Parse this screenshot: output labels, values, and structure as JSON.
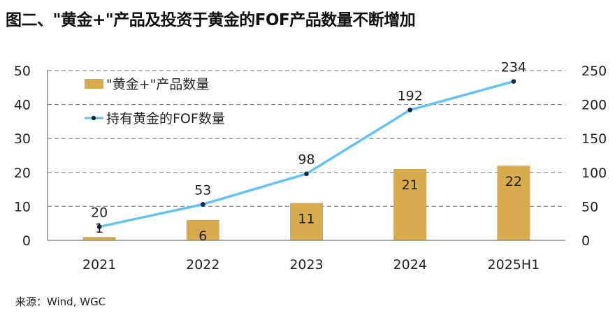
{
  "title": "图二、\"黄金+\"产品及投资于黄金的FOF产品数量不断增加",
  "source": "来源：Wind, WGC",
  "colors": {
    "bar": "#D8AC4E",
    "line": "#62C3F2",
    "marker": "#0B2A4A",
    "grid": "#888888",
    "axis": "#888888"
  },
  "chart_data": {
    "type": "bar+line",
    "title": "图二、\"黄金+\"产品及投资于黄金的FOF产品数量不断增加",
    "categories": [
      "2021",
      "2022",
      "2023",
      "2024",
      "2025H1"
    ],
    "series": [
      {
        "name": "\"黄金+\"产品数量",
        "type": "bar",
        "axis": "left",
        "values": [
          1,
          6,
          11,
          21,
          22
        ],
        "labels": [
          "1",
          "6",
          "11",
          "21",
          "22"
        ]
      },
      {
        "name": "持有黄金的FOF数量",
        "type": "line",
        "axis": "right",
        "values": [
          20,
          53,
          98,
          192,
          234
        ],
        "labels": [
          "20",
          "53",
          "98",
          "192",
          "234"
        ]
      }
    ],
    "left_axis": {
      "ylim": [
        0,
        50
      ],
      "ticks": [
        "0",
        "10",
        "20",
        "30",
        "40",
        "50"
      ]
    },
    "right_axis": {
      "ylim": [
        0,
        250
      ],
      "ticks": [
        "0",
        "50",
        "100",
        "150",
        "200",
        "250"
      ]
    },
    "grid": true,
    "legend": "top-left"
  }
}
